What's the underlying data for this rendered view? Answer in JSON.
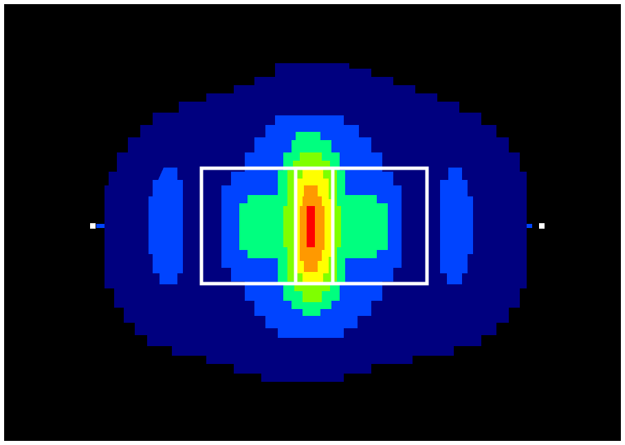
{
  "colors": {
    "background": "#000000",
    "level_1": "#00007f",
    "level_2": "#0044ff",
    "level_3": "#00ff7f",
    "level_4": "#7fff00",
    "level_5": "#ffff00",
    "level_6": "#ff9900",
    "level_7": "#ff0000",
    "overlay": "#ffffff"
  }
}
